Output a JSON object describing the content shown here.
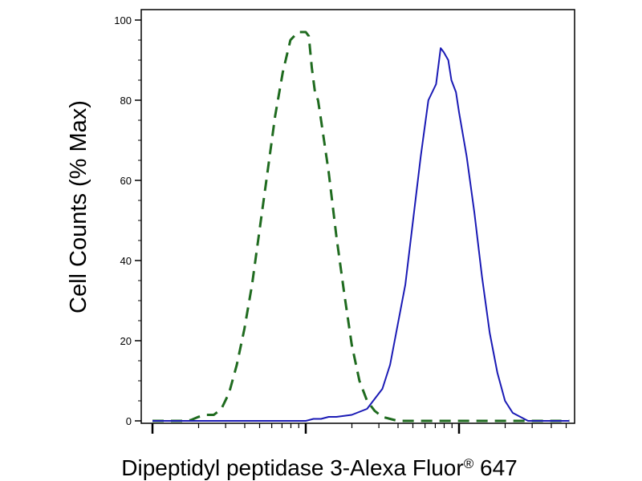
{
  "chart_data": {
    "type": "line",
    "title": "",
    "xlabel": "Dipeptidyl peptidase 3-Alexa Fluor",
    "xlabel_sup": "®",
    "xlabel_suffix": " 647",
    "ylabel": "Cell Counts (% Max)",
    "x_scale": "log",
    "x_decades": 3,
    "ylim": [
      0,
      100
    ],
    "y_ticks": [
      0,
      20,
      40,
      60,
      80,
      100
    ],
    "y_tick_labels": [
      "0",
      "20",
      "40",
      "60",
      "80",
      "100"
    ],
    "grid": false,
    "legend": false,
    "series": [
      {
        "color": "#1f6b1f",
        "line_style": "dashed",
        "x": [
          0.0,
          0.05,
          0.1,
          0.15,
          0.2,
          0.25,
          0.3,
          0.35,
          0.4,
          0.45,
          0.5,
          0.55,
          0.6,
          0.65,
          0.7,
          0.75,
          0.8,
          0.85,
          0.9,
          0.95,
          1.0,
          1.02,
          1.04,
          1.06,
          1.08,
          1.1,
          1.15,
          1.2,
          1.25,
          1.3,
          1.35,
          1.4,
          1.45,
          1.5,
          1.55,
          1.6,
          1.65,
          1.7,
          1.75,
          1.8,
          1.85,
          1.9,
          2.0,
          2.2,
          2.4,
          2.6,
          2.72
        ],
        "y": [
          0,
          0,
          0,
          0,
          0,
          0.2,
          1,
          1.5,
          1.5,
          3,
          7,
          14,
          23,
          34,
          48,
          62,
          76,
          87,
          95,
          97,
          97,
          96,
          88,
          82,
          80,
          75,
          62,
          46,
          32,
          19,
          10,
          5,
          2.5,
          1,
          0.5,
          0,
          0,
          0,
          0,
          0,
          0,
          0,
          0,
          0,
          0,
          0,
          0
        ]
      },
      {
        "color": "#1a1ab5",
        "line_style": "solid",
        "x": [
          0.0,
          0.5,
          1.0,
          1.05,
          1.1,
          1.15,
          1.2,
          1.3,
          1.4,
          1.5,
          1.55,
          1.6,
          1.65,
          1.7,
          1.75,
          1.8,
          1.85,
          1.88,
          1.9,
          1.93,
          1.95,
          1.98,
          2.0,
          2.05,
          2.1,
          2.15,
          2.2,
          2.25,
          2.3,
          2.35,
          2.4,
          2.45,
          2.5,
          2.55,
          2.6,
          2.65,
          2.72
        ],
        "y": [
          0,
          0,
          0,
          0.5,
          0.5,
          1,
          1,
          1.5,
          3,
          8,
          14,
          24,
          34,
          50,
          66,
          80,
          84,
          93,
          92,
          90,
          85,
          82,
          77,
          66,
          52,
          36,
          22,
          12,
          5,
          2,
          1,
          0,
          0,
          0,
          0,
          0,
          0
        ]
      }
    ]
  }
}
